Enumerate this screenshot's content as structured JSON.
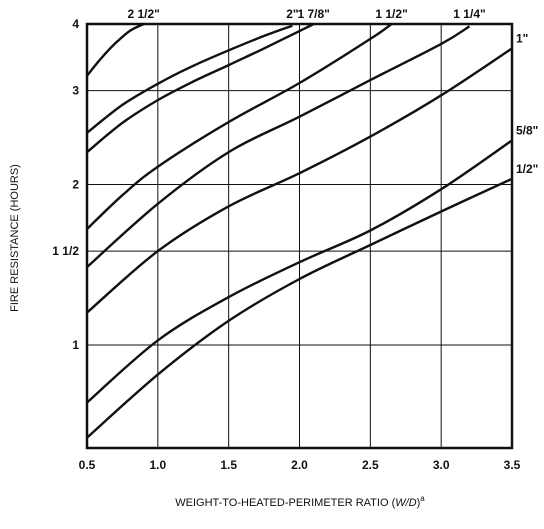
{
  "chart_data": {
    "type": "line",
    "xlabel": "WEIGHT-TO-HEATED-PERIMETER RATIO (W/D)",
    "xlabel_main": "WEIGHT-TO-HEATED-PERIMETER RATIO (",
    "xlabel_var": "W/D",
    "xlabel_close": ")",
    "xlabel_sup": "a",
    "ylabel": "FIRE RESISTANCE (HOURS)",
    "xlim": [
      0.5,
      3.5
    ],
    "ylim": [
      0.3,
      4
    ],
    "grid": true,
    "x_ticks": [
      {
        "value": 0.5,
        "label": "0.5"
      },
      {
        "value": 1.0,
        "label": "1.0"
      },
      {
        "value": 1.5,
        "label": "1.5"
      },
      {
        "value": 2.0,
        "label": "2.0"
      },
      {
        "value": 2.5,
        "label": "2.5"
      },
      {
        "value": 3.0,
        "label": "3.0"
      },
      {
        "value": 3.5,
        "label": "3.5"
      }
    ],
    "y_ticks": [
      {
        "value": 1,
        "label": "1"
      },
      {
        "value": 1.5,
        "label": "1 1/2"
      },
      {
        "value": 2,
        "label": "2"
      },
      {
        "value": 3,
        "label": "3"
      },
      {
        "value": 4,
        "label": "4"
      }
    ],
    "series": [
      {
        "name": "2 1/2\"",
        "label_pos": "top",
        "x": [
          0.5,
          0.6,
          0.7,
          0.8,
          0.9
        ],
        "y": [
          3.2,
          3.45,
          3.68,
          3.88,
          4.0
        ]
      },
      {
        "name": "2\"",
        "label_pos": "top",
        "x": [
          0.5,
          0.75,
          1.0,
          1.25,
          1.5,
          1.75,
          1.95
        ],
        "y": [
          2.5,
          2.82,
          3.09,
          3.34,
          3.57,
          3.8,
          3.97
        ]
      },
      {
        "name": "1 7/8\"",
        "label_pos": "top",
        "x": [
          0.5,
          0.75,
          1.0,
          1.25,
          1.5,
          1.75,
          2.0,
          2.1
        ],
        "y": [
          2.3,
          2.61,
          2.88,
          3.12,
          3.35,
          3.6,
          3.88,
          4.0
        ]
      },
      {
        "name": "1 1/2\"",
        "label_pos": "top",
        "x": [
          0.5,
          0.75,
          1.0,
          1.5,
          2.0,
          2.5,
          2.65
        ],
        "y": [
          1.65,
          1.91,
          2.16,
          2.62,
          3.1,
          3.75,
          4.0
        ]
      },
      {
        "name": "1 1/4\"",
        "label_pos": "top",
        "x": [
          0.5,
          1.0,
          1.5,
          2.0,
          2.5,
          3.0,
          3.2
        ],
        "y": [
          1.4,
          1.84,
          2.3,
          2.68,
          3.14,
          3.67,
          3.96
        ]
      },
      {
        "name": "1\"",
        "label_pos": "right",
        "x": [
          0.5,
          1.0,
          1.5,
          2.0,
          2.5,
          3.0,
          3.5
        ],
        "y": [
          1.15,
          1.5,
          1.82,
          2.1,
          2.46,
          2.94,
          3.6
        ]
      },
      {
        "name": "5/8\"",
        "label_pos": "right",
        "x": [
          0.5,
          1.0,
          1.5,
          2.0,
          2.5,
          3.0,
          3.5
        ],
        "y": [
          0.78,
          1.02,
          1.23,
          1.43,
          1.64,
          1.96,
          2.42
        ]
      },
      {
        "name": "1/2\"",
        "label_pos": "right",
        "x": [
          0.5,
          1.0,
          1.5,
          2.0,
          2.5,
          3.0,
          3.5
        ],
        "y": [
          0.67,
          0.88,
          1.11,
          1.33,
          1.54,
          1.78,
          2.05
        ]
      }
    ]
  }
}
